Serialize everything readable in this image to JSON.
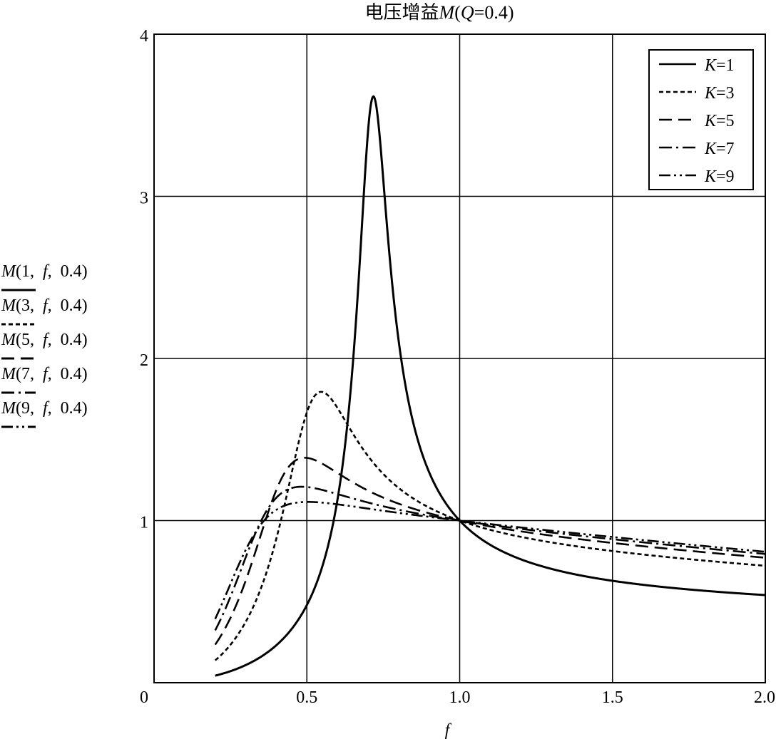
{
  "chart_data": {
    "type": "line",
    "title": "电压增益M(Q=0.4)",
    "title_parts": {
      "prefix": "电压增益",
      "italic_m": "M",
      "open": "(",
      "italic_q": "Q",
      "rest": "=0.4)"
    },
    "xlabel": "f",
    "xlim": [
      0,
      2.0
    ],
    "ylim": [
      0,
      4
    ],
    "x_ticks": [
      {
        "value": 0,
        "label": "0"
      },
      {
        "value": 0.5,
        "label": "0.5"
      },
      {
        "value": 1.0,
        "label": "1.0"
      },
      {
        "value": 1.5,
        "label": "1.5"
      },
      {
        "value": 2.0,
        "label": "2.0"
      }
    ],
    "y_ticks": [
      {
        "value": 1,
        "label": "1"
      },
      {
        "value": 2,
        "label": "2"
      },
      {
        "value": 3,
        "label": "3"
      },
      {
        "value": 4,
        "label": "4"
      }
    ],
    "grid": true,
    "legend_position": "top-right",
    "Q": 0.4,
    "f_range": [
      0.2,
      2.0
    ],
    "series": [
      {
        "name": "K=1",
        "K": 1,
        "legend_italic": "K",
        "legend_rest": "=1",
        "dash": "solid",
        "side_label": {
          "m": "M",
          "a": "(1,  ",
          "f": "f",
          "b": ",  0.4)"
        }
      },
      {
        "name": "K=3",
        "K": 3,
        "legend_italic": "K",
        "legend_rest": "=3",
        "dash": "dotted",
        "side_label": {
          "m": "M",
          "a": "(3,  ",
          "f": "f",
          "b": ",  0.4)"
        }
      },
      {
        "name": "K=5",
        "K": 5,
        "legend_italic": "K",
        "legend_rest": "=5",
        "dash": "dashed",
        "side_label": {
          "m": "M",
          "a": "(5,  ",
          "f": "f",
          "b": ",  0.4)"
        }
      },
      {
        "name": "K=7",
        "K": 7,
        "legend_italic": "K",
        "legend_rest": "=7",
        "dash": "dashdot",
        "side_label": {
          "m": "M",
          "a": "(7,  ",
          "f": "f",
          "b": ",  0.4)"
        }
      },
      {
        "name": "K=9",
        "K": 9,
        "legend_italic": "K",
        "legend_rest": "=9",
        "dash": "dashdotdot",
        "side_label": {
          "m": "M",
          "a": "(9,  ",
          "f": "f",
          "b": ",  0.4)"
        }
      }
    ]
  }
}
